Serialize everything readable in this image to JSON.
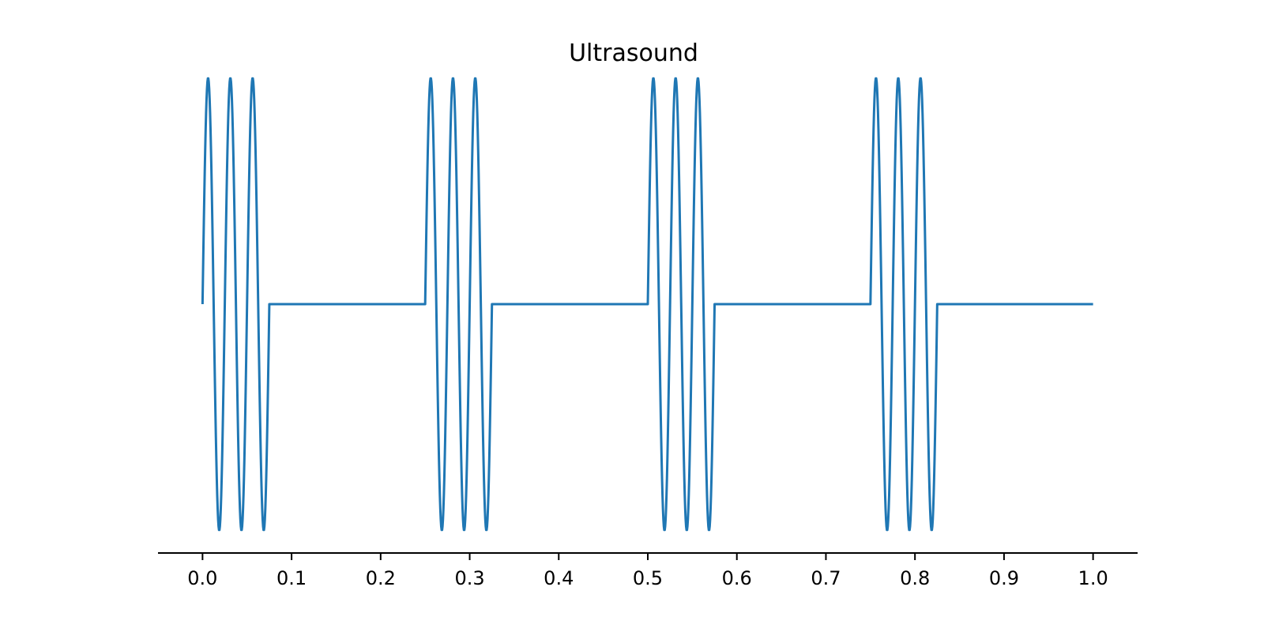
{
  "chart_data": {
    "type": "line",
    "title": "Ultrasound",
    "xlabel": "",
    "ylabel": "",
    "xlim": [
      -0.05,
      1.05
    ],
    "ylim": [
      -1.1,
      1.1
    ],
    "xticks": [
      0.0,
      0.1,
      0.2,
      0.3,
      0.4,
      0.5,
      0.6,
      0.7,
      0.8,
      0.9,
      1.0
    ],
    "xtick_labels": [
      "0.0",
      "0.1",
      "0.2",
      "0.3",
      "0.4",
      "0.5",
      "0.6",
      "0.7",
      "0.8",
      "0.9",
      "1.0"
    ],
    "y_axis_visible": false,
    "grid": false,
    "legend": "none",
    "series": [
      {
        "color": "#1f77b4",
        "signal": {
          "kind": "pulsed sine",
          "frequency_hz": 40,
          "amplitude": 1.0,
          "pulse_period": 0.25,
          "pulse_duration": 0.075,
          "x_start": 0.0,
          "x_end": 1.0,
          "samples": 2001
        }
      }
    ]
  }
}
